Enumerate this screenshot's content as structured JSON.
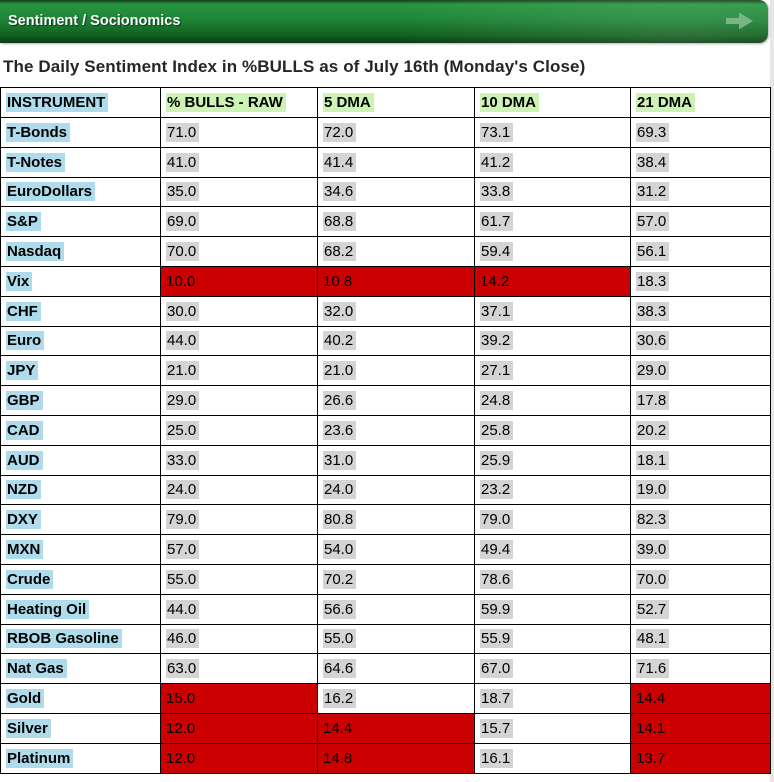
{
  "topbar": {
    "title": "Sentiment / Socionomics",
    "arrow_icon": "arrow-right"
  },
  "page_title": "The Daily Sentiment Index in %BULLS as of July 16th (Monday's Close)",
  "colors": {
    "topbar_green": "#1e8537",
    "alert_red": "#cc0000",
    "header_highlight_green": "#ccf3b4",
    "instrument_highlight_blue": "#aedcec",
    "value_highlight_gray": "#d4d4d4"
  },
  "table": {
    "columns": [
      "INSTRUMENT",
      "% BULLS - RAW",
      "5 DMA",
      "10 DMA",
      "21 DMA"
    ],
    "rows": [
      {
        "instrument": "T-Bonds",
        "values": [
          "71.0",
          "72.0",
          "73.1",
          "69.3"
        ],
        "red": [
          false,
          false,
          false,
          false
        ]
      },
      {
        "instrument": "T-Notes",
        "values": [
          "41.0",
          "41.4",
          "41.2",
          "38.4"
        ],
        "red": [
          false,
          false,
          false,
          false
        ]
      },
      {
        "instrument": "EuroDollars",
        "values": [
          "35.0",
          "34.6",
          "33.8",
          "31.2"
        ],
        "red": [
          false,
          false,
          false,
          false
        ]
      },
      {
        "instrument": "S&P",
        "values": [
          "69.0",
          "68.8",
          "61.7",
          "57.0"
        ],
        "red": [
          false,
          false,
          false,
          false
        ]
      },
      {
        "instrument": "Nasdaq",
        "values": [
          "70.0",
          "68.2",
          "59.4",
          "56.1"
        ],
        "red": [
          false,
          false,
          false,
          false
        ]
      },
      {
        "instrument": "Vix",
        "values": [
          "10.0",
          "10.8",
          "14.2",
          "18.3"
        ],
        "red": [
          true,
          true,
          true,
          false
        ]
      },
      {
        "instrument": "CHF",
        "values": [
          "30.0",
          "32.0",
          "37.1",
          "38.3"
        ],
        "red": [
          false,
          false,
          false,
          false
        ]
      },
      {
        "instrument": "Euro",
        "values": [
          "44.0",
          "40.2",
          "39.2",
          "30.6"
        ],
        "red": [
          false,
          false,
          false,
          false
        ]
      },
      {
        "instrument": "JPY",
        "values": [
          "21.0",
          "21.0",
          "27.1",
          "29.0"
        ],
        "red": [
          false,
          false,
          false,
          false
        ]
      },
      {
        "instrument": "GBP",
        "values": [
          "29.0",
          "26.6",
          "24.8",
          "17.8"
        ],
        "red": [
          false,
          false,
          false,
          false
        ]
      },
      {
        "instrument": "CAD",
        "values": [
          "25.0",
          "23.6",
          "25.8",
          "20.2"
        ],
        "red": [
          false,
          false,
          false,
          false
        ]
      },
      {
        "instrument": "AUD",
        "values": [
          "33.0",
          "31.0",
          "25.9",
          "18.1"
        ],
        "red": [
          false,
          false,
          false,
          false
        ]
      },
      {
        "instrument": "NZD",
        "values": [
          "24.0",
          "24.0",
          "23.2",
          "19.0"
        ],
        "red": [
          false,
          false,
          false,
          false
        ]
      },
      {
        "instrument": "DXY",
        "values": [
          "79.0",
          "80.8",
          "79.0",
          "82.3"
        ],
        "red": [
          false,
          false,
          false,
          false
        ]
      },
      {
        "instrument": "MXN",
        "values": [
          "57.0",
          "54.0",
          "49.4",
          "39.0"
        ],
        "red": [
          false,
          false,
          false,
          false
        ]
      },
      {
        "instrument": "Crude",
        "values": [
          "55.0",
          "70.2",
          "78.6",
          "70.0"
        ],
        "red": [
          false,
          false,
          false,
          false
        ]
      },
      {
        "instrument": "Heating Oil",
        "values": [
          "44.0",
          "56.6",
          "59.9",
          "52.7"
        ],
        "red": [
          false,
          false,
          false,
          false
        ]
      },
      {
        "instrument": "RBOB Gasoline",
        "values": [
          "46.0",
          "55.0",
          "55.9",
          "48.1"
        ],
        "red": [
          false,
          false,
          false,
          false
        ]
      },
      {
        "instrument": "Nat Gas",
        "values": [
          "63.0",
          "64.6",
          "67.0",
          "71.6"
        ],
        "red": [
          false,
          false,
          false,
          false
        ]
      },
      {
        "instrument": "Gold",
        "values": [
          "15.0",
          "16.2",
          "18.7",
          "14.4"
        ],
        "red": [
          true,
          false,
          false,
          true
        ]
      },
      {
        "instrument": "Silver",
        "values": [
          "12.0",
          "14.4",
          "15.7",
          "14.1"
        ],
        "red": [
          true,
          true,
          false,
          true
        ]
      },
      {
        "instrument": "Platinum",
        "values": [
          "12.0",
          "14.8",
          "16.1",
          "13.7"
        ],
        "red": [
          true,
          true,
          false,
          true
        ]
      }
    ]
  }
}
